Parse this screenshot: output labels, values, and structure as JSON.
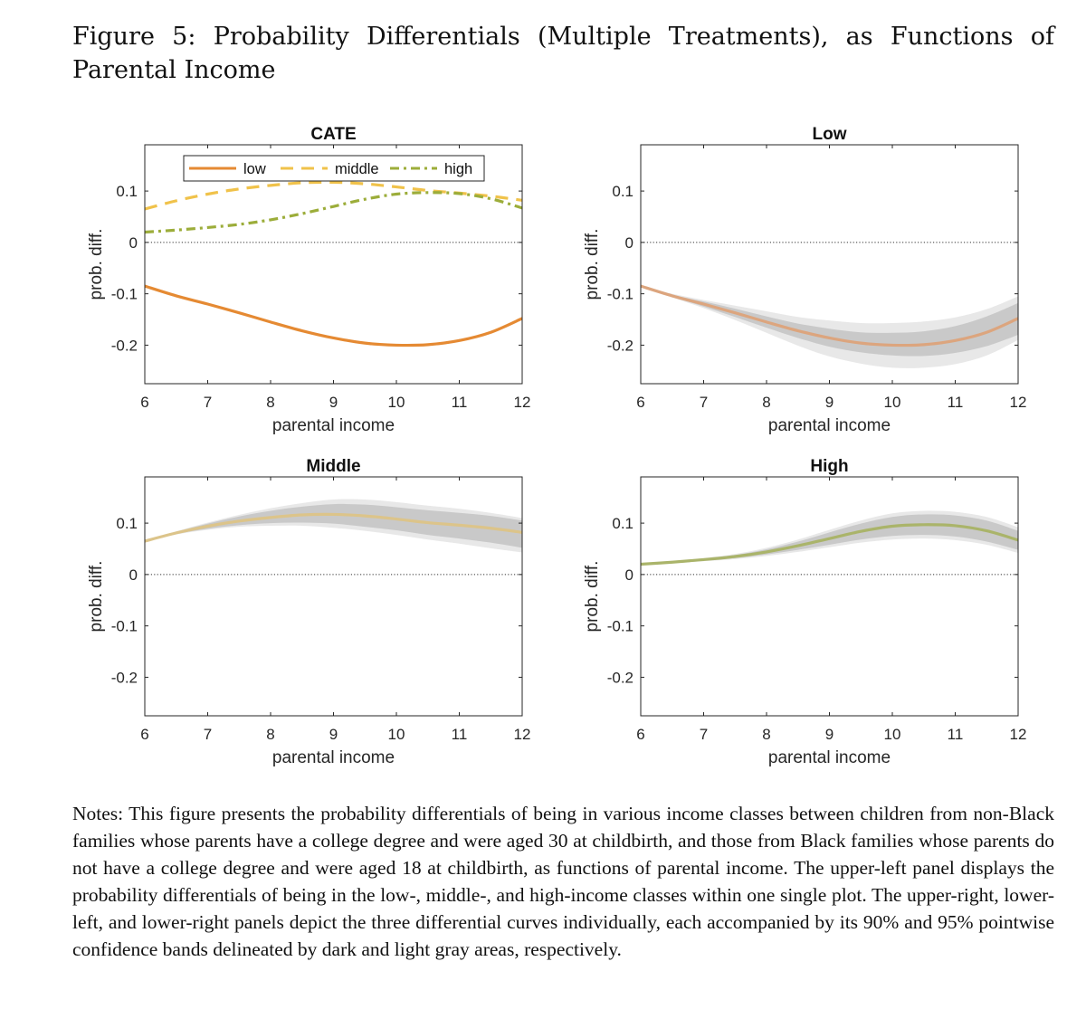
{
  "caption": "Figure 5: Probability Differentials (Multiple Treatments), as Functions of Parental Income",
  "notes": "Notes: This figure presents the probability differentials of being in various income classes between children from non-Black families whose parents have a college degree and were aged 30 at childbirth, and those from Black families whose parents do not have a college degree and were aged 18 at childbirth, as functions of parental income. The upper-left panel displays the probability differentials of being in the low-, middle-, and high-income classes within one single plot. The upper-right, lower-left, and lower-right panels depict the three differential curves individually, each accompanied by its 90% and 95% pointwise confidence bands delineated by dark and light gray areas, respectively.",
  "colors": {
    "low": "#e58a33",
    "middle": "#f0c24a",
    "high": "#9cad3a",
    "low_single": "#dca57e",
    "middle_single": "#dcc48a",
    "high_single": "#aab46a",
    "band90": "#c9c9c9",
    "band95": "#e8e8e8"
  },
  "chart_data": [
    {
      "type": "line",
      "title": "CATE",
      "xlabel": "parental income",
      "ylabel": "prob. diff.",
      "xlim": [
        6,
        12
      ],
      "ylim": [
        -0.275,
        0.19
      ],
      "xticks": [
        6,
        7,
        8,
        9,
        10,
        11,
        12
      ],
      "yticks": [
        -0.2,
        -0.1,
        0,
        0.1
      ],
      "ytick_labels": [
        "-0.2",
        "-0.1",
        "0",
        "0.1"
      ],
      "zero_line": true,
      "legend": {
        "placement": "top",
        "orientation": "horizontal"
      },
      "x": [
        6,
        6.5,
        7,
        7.5,
        8,
        8.5,
        9,
        9.5,
        10,
        10.5,
        11,
        11.5,
        12
      ],
      "series": [
        {
          "name": "low",
          "style": "solid",
          "color_key": "low",
          "values": [
            -0.085,
            -0.104,
            -0.12,
            -0.137,
            -0.155,
            -0.172,
            -0.186,
            -0.196,
            -0.2,
            -0.199,
            -0.191,
            -0.175,
            -0.148
          ]
        },
        {
          "name": "middle",
          "style": "dashed",
          "color_key": "middle",
          "values": [
            0.065,
            0.081,
            0.094,
            0.104,
            0.111,
            0.116,
            0.117,
            0.114,
            0.108,
            0.101,
            0.096,
            0.09,
            0.082
          ]
        },
        {
          "name": "high",
          "style": "dashdot",
          "color_key": "high",
          "values": [
            0.02,
            0.024,
            0.029,
            0.035,
            0.044,
            0.056,
            0.07,
            0.084,
            0.094,
            0.097,
            0.095,
            0.085,
            0.067
          ]
        }
      ]
    },
    {
      "type": "line",
      "title": "Low",
      "xlabel": "parental income",
      "ylabel": "prob. diff.",
      "xlim": [
        6,
        12
      ],
      "ylim": [
        -0.275,
        0.19
      ],
      "xticks": [
        6,
        7,
        8,
        9,
        10,
        11,
        12
      ],
      "yticks": [
        -0.2,
        -0.1,
        0,
        0.1
      ],
      "ytick_labels": [
        "-0.2",
        "-0.1",
        "0",
        "0.1"
      ],
      "zero_line": true,
      "x": [
        6,
        6.5,
        7,
        7.5,
        8,
        8.5,
        9,
        9.5,
        10,
        10.5,
        11,
        11.5,
        12
      ],
      "series": [
        {
          "style": "solid",
          "color_key": "low_single",
          "values": [
            -0.085,
            -0.104,
            -0.12,
            -0.137,
            -0.155,
            -0.172,
            -0.186,
            -0.196,
            -0.2,
            -0.199,
            -0.191,
            -0.175,
            -0.148
          ],
          "band90_lower": [
            -0.085,
            -0.106,
            -0.125,
            -0.145,
            -0.166,
            -0.186,
            -0.203,
            -0.214,
            -0.22,
            -0.221,
            -0.215,
            -0.202,
            -0.18
          ],
          "band90_upper": [
            -0.085,
            -0.102,
            -0.115,
            -0.129,
            -0.144,
            -0.158,
            -0.168,
            -0.175,
            -0.176,
            -0.173,
            -0.163,
            -0.144,
            -0.118
          ],
          "band95_lower": [
            -0.085,
            -0.107,
            -0.128,
            -0.151,
            -0.176,
            -0.201,
            -0.222,
            -0.236,
            -0.244,
            -0.244,
            -0.237,
            -0.22,
            -0.19
          ],
          "band95_upper": [
            -0.085,
            -0.1,
            -0.112,
            -0.123,
            -0.134,
            -0.145,
            -0.152,
            -0.157,
            -0.157,
            -0.154,
            -0.146,
            -0.13,
            -0.105
          ]
        }
      ]
    },
    {
      "type": "line",
      "title": "Middle",
      "xlabel": "parental income",
      "ylabel": "prob. diff.",
      "xlim": [
        6,
        12
      ],
      "ylim": [
        -0.275,
        0.19
      ],
      "xticks": [
        6,
        7,
        8,
        9,
        10,
        11,
        12
      ],
      "yticks": [
        -0.2,
        -0.1,
        0,
        0.1
      ],
      "ytick_labels": [
        "-0.2",
        "-0.1",
        "0",
        "0.1"
      ],
      "zero_line": true,
      "x": [
        6,
        6.5,
        7,
        7.5,
        8,
        8.5,
        9,
        9.5,
        10,
        10.5,
        11,
        11.5,
        12
      ],
      "series": [
        {
          "style": "solid",
          "color_key": "middle_single",
          "values": [
            0.065,
            0.081,
            0.094,
            0.104,
            0.111,
            0.116,
            0.117,
            0.114,
            0.108,
            0.101,
            0.096,
            0.09,
            0.082
          ],
          "band90_lower": [
            0.065,
            0.079,
            0.089,
            0.096,
            0.1,
            0.101,
            0.099,
            0.093,
            0.086,
            0.077,
            0.07,
            0.062,
            0.052
          ],
          "band90_upper": [
            0.065,
            0.083,
            0.099,
            0.113,
            0.124,
            0.132,
            0.137,
            0.136,
            0.131,
            0.125,
            0.12,
            0.114,
            0.105
          ],
          "band95_lower": [
            0.065,
            0.078,
            0.087,
            0.093,
            0.095,
            0.095,
            0.091,
            0.085,
            0.077,
            0.068,
            0.06,
            0.051,
            0.043
          ],
          "band95_upper": [
            0.065,
            0.084,
            0.101,
            0.116,
            0.129,
            0.139,
            0.146,
            0.146,
            0.141,
            0.134,
            0.128,
            0.12,
            0.11
          ]
        }
      ]
    },
    {
      "type": "line",
      "title": "High",
      "xlabel": "parental income",
      "ylabel": "prob. diff.",
      "xlim": [
        6,
        12
      ],
      "ylim": [
        -0.275,
        0.19
      ],
      "xticks": [
        6,
        7,
        8,
        9,
        10,
        11,
        12
      ],
      "yticks": [
        -0.2,
        -0.1,
        0,
        0.1
      ],
      "ytick_labels": [
        "-0.2",
        "-0.1",
        "0",
        "0.1"
      ],
      "zero_line": true,
      "x": [
        6,
        6.5,
        7,
        7.5,
        8,
        8.5,
        9,
        9.5,
        10,
        10.5,
        11,
        11.5,
        12
      ],
      "series": [
        {
          "style": "solid",
          "color_key": "high_single",
          "values": [
            0.02,
            0.024,
            0.029,
            0.035,
            0.044,
            0.056,
            0.07,
            0.084,
            0.094,
            0.097,
            0.095,
            0.085,
            0.067
          ],
          "band90_lower": [
            0.02,
            0.023,
            0.027,
            0.032,
            0.039,
            0.048,
            0.058,
            0.068,
            0.075,
            0.077,
            0.074,
            0.064,
            0.048
          ],
          "band90_upper": [
            0.02,
            0.025,
            0.031,
            0.038,
            0.049,
            0.064,
            0.082,
            0.099,
            0.112,
            0.117,
            0.115,
            0.105,
            0.085
          ],
          "band95_lower": [
            0.02,
            0.022,
            0.026,
            0.03,
            0.036,
            0.044,
            0.053,
            0.062,
            0.068,
            0.07,
            0.067,
            0.058,
            0.042
          ],
          "band95_upper": [
            0.02,
            0.026,
            0.032,
            0.04,
            0.052,
            0.068,
            0.087,
            0.105,
            0.119,
            0.124,
            0.122,
            0.112,
            0.092
          ]
        }
      ]
    }
  ]
}
